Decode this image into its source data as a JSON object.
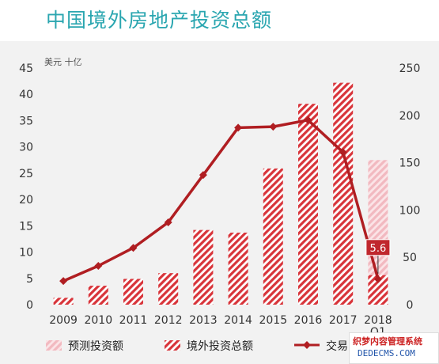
{
  "title": "中国境外房地产投资总额",
  "chart_data": {
    "type": "bar",
    "categories": [
      "2009",
      "2010",
      "2011",
      "2012",
      "2013",
      "2014",
      "2015",
      "2016",
      "2017",
      "2018 Q1"
    ],
    "series": [
      {
        "name": "预测投资额",
        "type": "bar",
        "axis": "left",
        "values": [
          null,
          null,
          null,
          null,
          null,
          null,
          null,
          null,
          null,
          27.5
        ],
        "style": "light-red-hatch"
      },
      {
        "name": "境外投资总额",
        "type": "bar",
        "axis": "left",
        "values": [
          1.3,
          3.6,
          4.9,
          6.0,
          14.2,
          13.7,
          25.9,
          38.2,
          42.2,
          5.6
        ],
        "style": "red-hatch"
      },
      {
        "name": "交易",
        "type": "line",
        "axis": "right",
        "values": [
          25,
          41,
          60,
          87,
          137,
          187,
          188,
          195,
          161,
          27
        ],
        "style": "dark-red-line"
      }
    ],
    "left_axis": {
      "unit": "美元 十亿",
      "ylim": [
        0,
        45
      ],
      "ticks": [
        "0",
        "5",
        "10",
        "15",
        "20",
        "25",
        "30",
        "35",
        "40",
        "45"
      ]
    },
    "right_axis": {
      "ylim": [
        0,
        250
      ],
      "ticks": [
        "0",
        "50",
        "100",
        "150",
        "200",
        "250"
      ]
    },
    "callout": {
      "category": "2018 Q1",
      "text": "5.6"
    },
    "legend_position": "bottom",
    "grid": false
  },
  "colors": {
    "title": "#2aa6b0",
    "bar_red": "#d8343a",
    "bar_light": "#f2b9c0",
    "line": "#b01e22",
    "background": "#f2f2f2"
  },
  "watermark": {
    "line1": "织梦内容管理系统",
    "line2": "DEDECMS.COM"
  }
}
